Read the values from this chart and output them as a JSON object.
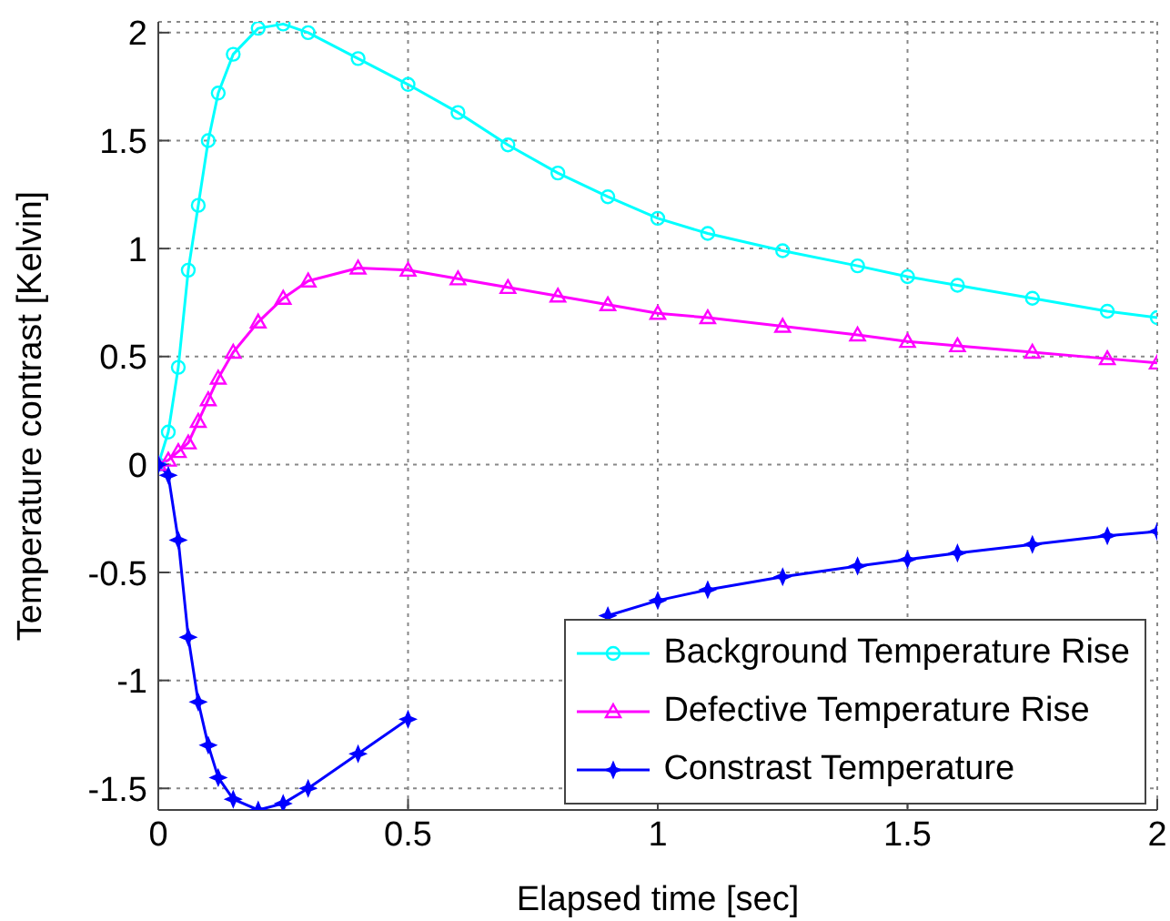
{
  "chart_data": {
    "type": "line",
    "xlabel": "Elapsed time [sec]",
    "ylabel": "Temperature contrast [Kelvin]",
    "x": [
      0,
      0.02,
      0.04,
      0.06,
      0.08,
      0.1,
      0.12,
      0.15,
      0.2,
      0.25,
      0.3,
      0.4,
      0.5,
      0.6,
      0.7,
      0.8,
      0.9,
      1,
      1.1,
      1.25,
      1.4,
      1.5,
      1.6,
      1.75,
      1.9,
      2
    ],
    "series": [
      {
        "name": "Background Temperature Rise",
        "color": "#00ffff",
        "marker": "circle",
        "values": [
          0,
          0.15,
          0.45,
          0.9,
          1.2,
          1.5,
          1.72,
          1.9,
          2.02,
          2.04,
          2.0,
          1.88,
          1.76,
          1.63,
          1.48,
          1.35,
          1.24,
          1.14,
          1.07,
          0.99,
          0.92,
          0.87,
          0.83,
          0.77,
          0.71,
          0.68
        ]
      },
      {
        "name": "Defective Temperature Rise",
        "color": "#ff00ff",
        "marker": "triangle",
        "values": [
          0,
          0.02,
          0.06,
          0.1,
          0.2,
          0.3,
          0.4,
          0.52,
          0.66,
          0.77,
          0.85,
          0.91,
          0.9,
          0.86,
          0.82,
          0.78,
          0.74,
          0.7,
          0.68,
          0.64,
          0.6,
          0.57,
          0.55,
          0.52,
          0.49,
          0.47
        ]
      },
      {
        "name": "Constrast Temperature",
        "color": "#0000ff",
        "marker": "star",
        "values": [
          0,
          -0.05,
          -0.35,
          -0.8,
          -1.1,
          -1.3,
          -1.45,
          -1.55,
          -1.6,
          -1.57,
          -1.5,
          -1.34,
          -1.18,
          null,
          null,
          null,
          -0.7,
          -0.63,
          -0.58,
          -0.52,
          -0.47,
          -0.44,
          -0.41,
          -0.37,
          -0.33,
          -0.31
        ]
      }
    ],
    "xlim": [
      0,
      2
    ],
    "xticks": [
      0,
      0.5,
      1,
      1.5,
      2
    ],
    "ylim": [
      -1.6,
      2.05
    ],
    "yticks": [
      -1.5,
      -1,
      -0.5,
      0,
      0.5,
      1,
      1.5,
      2
    ],
    "grid": true,
    "legend": "bottom right",
    "line_style": "solid"
  }
}
